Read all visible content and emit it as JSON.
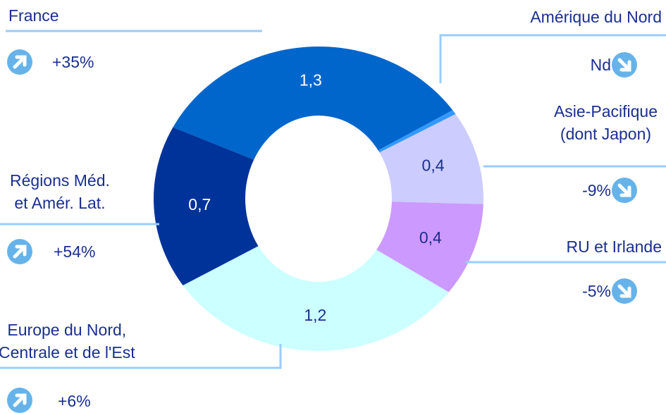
{
  "chart_data": {
    "type": "donut",
    "categories": [
      "France",
      "Amérique du Nord",
      "Asie-Pacifique\n(dont Japon)",
      "RU et Irlande",
      "Europe du Nord,\nCentrale et de l'Est",
      "Régions Méd.\net Amér. Lat."
    ],
    "values": [
      1.3,
      0.02,
      0.4,
      0.4,
      1.2,
      0.7
    ],
    "value_labels": [
      "1,3",
      null,
      "0,4",
      "0,4",
      "1,2",
      "0,7"
    ],
    "colors": [
      "#0066cc",
      "#3399ff",
      "#ccccff",
      "#cc99ff",
      "#ccffff",
      "#003399"
    ],
    "changes": [
      "+35%",
      "Nd",
      "-9%",
      "-5%",
      "+6%",
      "+54%"
    ]
  }
}
